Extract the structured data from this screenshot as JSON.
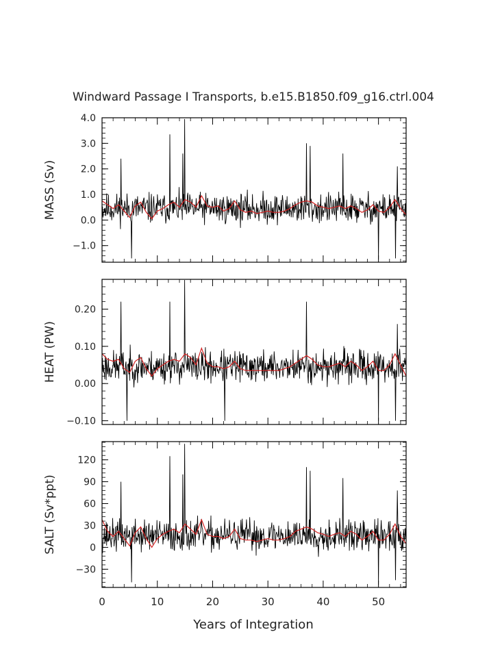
{
  "title": "Windward Passage I Transports, b.e15.B1850.f09_g16.ctrl.004",
  "xlabel": "Years of Integration",
  "colors": {
    "raw": "#000000",
    "smooth": "#d42020",
    "frame": "#000000"
  },
  "chart_data": [
    {
      "type": "line",
      "ylabel": "MASS (Sv)",
      "xlim": [
        0,
        55
      ],
      "ylim": [
        -1.65,
        4.0
      ],
      "yticks": [
        -1.0,
        0.0,
        1.0,
        2.0,
        3.0,
        4.0
      ],
      "ytick_labels": [
        "−1.0",
        "0.0",
        "1.0",
        "2.0",
        "3.0",
        "4.0"
      ],
      "xticks": [],
      "xtick_labels": [],
      "raw_series": {
        "n": 660,
        "mean": 0.45,
        "noise": 0.55,
        "seed": 11,
        "spikes": [
          [
            12.3,
            3.35
          ],
          [
            14.9,
            3.95
          ],
          [
            14.6,
            2.6
          ],
          [
            3.4,
            2.4
          ],
          [
            37.0,
            3.0
          ],
          [
            37.6,
            2.9
          ],
          [
            43.6,
            2.6
          ],
          [
            53.4,
            2.1
          ],
          [
            50.0,
            -1.55
          ],
          [
            5.3,
            -1.5
          ],
          [
            53.1,
            -1.5
          ]
        ]
      },
      "smooth_series": {
        "x": [
          0,
          1,
          2,
          3,
          4,
          5,
          6,
          7,
          8,
          9,
          10,
          11,
          12,
          13,
          14,
          15,
          16,
          17,
          18,
          19,
          20,
          21,
          22,
          23,
          24,
          25,
          26,
          27,
          28,
          29,
          30,
          31,
          32,
          33,
          34,
          35,
          36,
          37,
          38,
          39,
          40,
          41,
          42,
          43,
          44,
          45,
          46,
          47,
          48,
          49,
          50,
          51,
          52,
          53,
          54,
          55
        ],
        "y": [
          0.75,
          0.6,
          0.45,
          0.6,
          0.35,
          0.1,
          0.55,
          0.7,
          0.3,
          0.05,
          0.35,
          0.45,
          0.6,
          0.7,
          0.5,
          0.8,
          0.7,
          0.5,
          0.95,
          0.55,
          0.5,
          0.55,
          0.35,
          0.45,
          0.75,
          0.4,
          0.3,
          0.35,
          0.25,
          0.3,
          0.35,
          0.3,
          0.3,
          0.35,
          0.45,
          0.6,
          0.7,
          0.75,
          0.7,
          0.55,
          0.5,
          0.45,
          0.5,
          0.55,
          0.45,
          0.55,
          0.45,
          0.3,
          0.4,
          0.6,
          0.35,
          0.3,
          0.5,
          0.8,
          0.45,
          0.2
        ]
      }
    },
    {
      "type": "line",
      "ylabel": "HEAT (PW)",
      "xlim": [
        0,
        55
      ],
      "ylim": [
        -0.11,
        0.28
      ],
      "yticks": [
        -0.1,
        0.0,
        0.1,
        0.2
      ],
      "ytick_labels": [
        "−0.10",
        "0.00",
        "0.10",
        "0.20"
      ],
      "xticks": [],
      "xtick_labels": [],
      "raw_series": {
        "n": 660,
        "mean": 0.045,
        "noise": 0.04,
        "seed": 23,
        "spikes": [
          [
            14.9,
            0.28
          ],
          [
            12.3,
            0.22
          ],
          [
            3.4,
            0.22
          ],
          [
            37.0,
            0.22
          ],
          [
            53.4,
            0.16
          ],
          [
            50.0,
            -0.1
          ],
          [
            4.5,
            -0.1
          ],
          [
            22.2,
            -0.1
          ],
          [
            53.1,
            -0.1
          ]
        ]
      },
      "smooth_series": {
        "x": [
          0,
          1,
          2,
          3,
          4,
          5,
          6,
          7,
          8,
          9,
          10,
          11,
          12,
          13,
          14,
          15,
          16,
          17,
          18,
          19,
          20,
          21,
          22,
          23,
          24,
          25,
          26,
          27,
          28,
          29,
          30,
          31,
          32,
          33,
          34,
          35,
          36,
          37,
          38,
          39,
          40,
          41,
          42,
          43,
          44,
          45,
          46,
          47,
          48,
          49,
          50,
          51,
          52,
          53,
          54,
          55
        ],
        "y": [
          0.08,
          0.065,
          0.06,
          0.065,
          0.04,
          0.03,
          0.06,
          0.07,
          0.04,
          0.02,
          0.04,
          0.05,
          0.06,
          0.065,
          0.06,
          0.08,
          0.07,
          0.05,
          0.095,
          0.055,
          0.045,
          0.045,
          0.04,
          0.045,
          0.06,
          0.04,
          0.035,
          0.035,
          0.035,
          0.035,
          0.035,
          0.035,
          0.035,
          0.04,
          0.045,
          0.055,
          0.065,
          0.075,
          0.065,
          0.05,
          0.045,
          0.045,
          0.05,
          0.055,
          0.045,
          0.06,
          0.05,
          0.035,
          0.045,
          0.06,
          0.035,
          0.035,
          0.05,
          0.08,
          0.05,
          0.02
        ]
      }
    },
    {
      "type": "line",
      "ylabel": "SALT (Sv*ppt)",
      "xlim": [
        0,
        55
      ],
      "ylim": [
        -55,
        145
      ],
      "yticks": [
        -30,
        0,
        30,
        60,
        90,
        120
      ],
      "ytick_labels": [
        "−30",
        "0",
        "30",
        "60",
        "90",
        "120"
      ],
      "xticks": [
        0,
        10,
        20,
        30,
        40,
        50
      ],
      "xtick_labels": [
        "0",
        "10",
        "20",
        "30",
        "40",
        "50"
      ],
      "raw_series": {
        "n": 660,
        "mean": 16,
        "noise": 20,
        "seed": 37,
        "spikes": [
          [
            14.9,
            142
          ],
          [
            12.3,
            125
          ],
          [
            14.6,
            100
          ],
          [
            3.4,
            90
          ],
          [
            37.0,
            110
          ],
          [
            37.6,
            105
          ],
          [
            43.6,
            95
          ],
          [
            53.4,
            78
          ],
          [
            50.0,
            -52
          ],
          [
            5.3,
            -48
          ],
          [
            53.1,
            -45
          ]
        ]
      },
      "smooth_series": {
        "x": [
          0,
          1,
          2,
          3,
          4,
          5,
          6,
          7,
          8,
          9,
          10,
          11,
          12,
          13,
          14,
          15,
          16,
          17,
          18,
          19,
          20,
          21,
          22,
          23,
          24,
          25,
          26,
          27,
          28,
          29,
          30,
          31,
          32,
          33,
          34,
          35,
          36,
          37,
          38,
          39,
          40,
          41,
          42,
          43,
          44,
          45,
          46,
          47,
          48,
          49,
          50,
          51,
          52,
          53,
          54,
          55
        ],
        "y": [
          38,
          22,
          15,
          22,
          12,
          2,
          20,
          28,
          12,
          0,
          12,
          18,
          22,
          25,
          20,
          32,
          25,
          18,
          38,
          18,
          15,
          15,
          12,
          15,
          25,
          12,
          10,
          10,
          8,
          10,
          12,
          10,
          10,
          12,
          15,
          22,
          25,
          28,
          25,
          20,
          18,
          15,
          18,
          20,
          15,
          22,
          18,
          10,
          15,
          22,
          10,
          10,
          18,
          32,
          15,
          5
        ]
      }
    }
  ]
}
